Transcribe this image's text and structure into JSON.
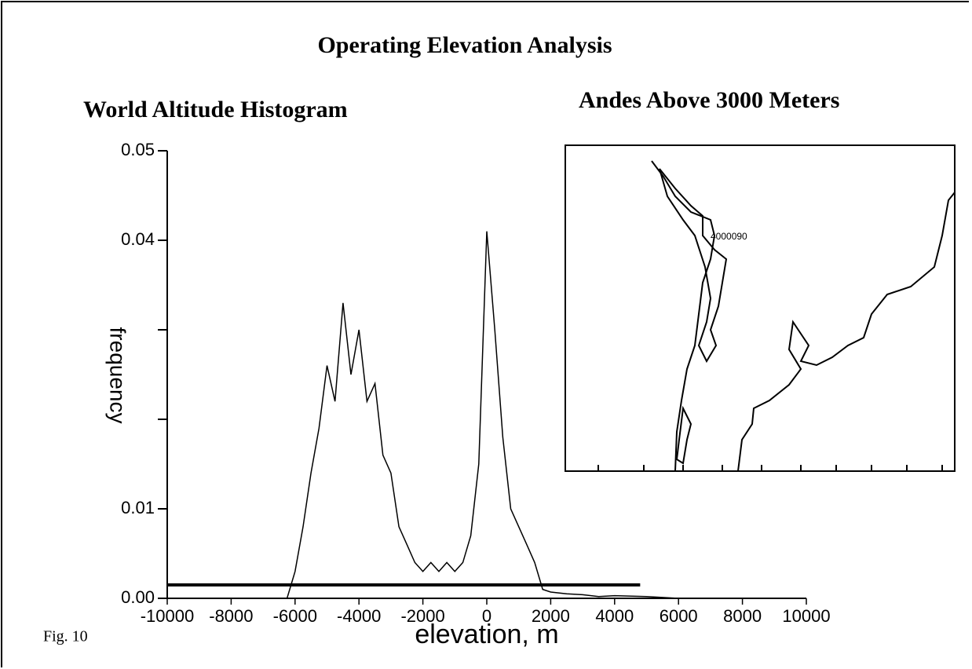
{
  "page": {
    "title": "Operating Elevation Analysis",
    "fig_label": "Fig. 10"
  },
  "chart_data": {
    "type": "line",
    "title": "World Altitude Histogram",
    "xlabel": "elevation, m",
    "ylabel": "frequency",
    "x": [
      -6500,
      -6250,
      -6000,
      -5750,
      -5500,
      -5250,
      -5000,
      -4750,
      -4500,
      -4250,
      -4000,
      -3750,
      -3500,
      -3250,
      -3000,
      -2750,
      -2500,
      -2250,
      -2000,
      -1750,
      -1500,
      -1250,
      -1000,
      -750,
      -500,
      -250,
      0,
      250,
      500,
      750,
      1000,
      1250,
      1500,
      1750,
      2000,
      2500,
      3000,
      3500,
      4000,
      5000,
      6000
    ],
    "values": [
      0,
      0,
      0.003,
      0.008,
      0.014,
      0.019,
      0.026,
      0.022,
      0.033,
      0.025,
      0.03,
      0.022,
      0.024,
      0.016,
      0.014,
      0.008,
      0.006,
      0.004,
      0.003,
      0.004,
      0.003,
      0.004,
      0.003,
      0.004,
      0.007,
      0.015,
      0.041,
      0.03,
      0.018,
      0.01,
      0.008,
      0.006,
      0.004,
      0.001,
      0.0007,
      0.0005,
      0.0004,
      0.0002,
      0.0003,
      0.0002,
      0
    ],
    "color": "#000000",
    "reference_line": {
      "x": [
        -10000,
        4800
      ],
      "y": [
        0.0015,
        0.0015
      ]
    },
    "xlim": [
      -10000,
      10000
    ],
    "xticks": [
      -10000,
      -8000,
      -6000,
      -4000,
      -2000,
      0,
      2000,
      4000,
      6000,
      8000,
      10000
    ],
    "ylim": [
      0,
      0.05
    ],
    "yticks": [
      {
        "value": 0,
        "label": "0.00"
      },
      0.01,
      0.04,
      0.05
    ],
    "yminor_ticks": [
      0.02,
      0.03
    ],
    "grid": false
  },
  "map": {
    "title": "Andes Above 3000 Meters",
    "contour_label": "4000090"
  }
}
